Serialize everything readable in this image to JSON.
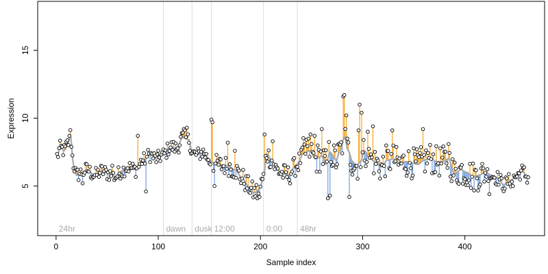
{
  "chart_data": {
    "type": "scatter",
    "title": "",
    "xlabel": "Sample index",
    "ylabel": "Expression",
    "xlim": [
      -18,
      478
    ],
    "ylim": [
      1.35,
      18.6
    ],
    "xticks": [
      0,
      100,
      200,
      300,
      400
    ],
    "yticks": [
      5,
      10,
      15
    ],
    "grid": false,
    "legend": "none",
    "colors": {
      "above_smooth": "#f5a623",
      "below_smooth": "#6f9ee0",
      "smooth_line": "#a9a9a9",
      "marker_edge": "#000000",
      "vline": "#dcdcdc",
      "annotation": "#a9a9a9"
    },
    "annotations": [
      {
        "x": 0,
        "label": "24hr"
      },
      {
        "x": 105,
        "label": "dawn"
      },
      {
        "x": 133,
        "label": "dusk"
      },
      {
        "x": 152,
        "label": "12:00"
      },
      {
        "x": 203,
        "label": "0:00"
      },
      {
        "x": 236,
        "label": "48hr"
      }
    ],
    "vlines": [
      105,
      133,
      152,
      203,
      236
    ],
    "anchors": [
      [
        1,
        7.2
      ],
      [
        4,
        7.8
      ],
      [
        8,
        7.6
      ],
      [
        12,
        8.2
      ],
      [
        14,
        8.8
      ],
      [
        17,
        6.6
      ],
      [
        20,
        5.8
      ],
      [
        25,
        6.0
      ],
      [
        30,
        6.2
      ],
      [
        38,
        5.8
      ],
      [
        45,
        6.1
      ],
      [
        52,
        5.9
      ],
      [
        58,
        5.7
      ],
      [
        64,
        6.1
      ],
      [
        70,
        6.4
      ],
      [
        78,
        6.2
      ],
      [
        85,
        6.9
      ],
      [
        92,
        7.3
      ],
      [
        98,
        7.0
      ],
      [
        105,
        7.3
      ],
      [
        112,
        7.9
      ],
      [
        118,
        7.8
      ],
      [
        124,
        8.6
      ],
      [
        130,
        8.4
      ],
      [
        133,
        7.4
      ],
      [
        138,
        7.3
      ],
      [
        144,
        7.5
      ],
      [
        148,
        7.1
      ],
      [
        152,
        6.8
      ],
      [
        156,
        6.6
      ],
      [
        162,
        6.5
      ],
      [
        168,
        6.5
      ],
      [
        175,
        6.2
      ],
      [
        182,
        5.6
      ],
      [
        188,
        5.0
      ],
      [
        194,
        4.5
      ],
      [
        199,
        4.8
      ],
      [
        203,
        5.6
      ],
      [
        206,
        7.4
      ],
      [
        211,
        6.9
      ],
      [
        216,
        6.2
      ],
      [
        222,
        5.9
      ],
      [
        228,
        5.8
      ],
      [
        232,
        6.3
      ],
      [
        236,
        6.6
      ],
      [
        242,
        7.4
      ],
      [
        248,
        7.6
      ],
      [
        254,
        7.0
      ],
      [
        260,
        7.2
      ],
      [
        264,
        6.6
      ],
      [
        268,
        7.5
      ],
      [
        274,
        6.9
      ],
      [
        278,
        7.6
      ],
      [
        282,
        8.6
      ],
      [
        286,
        7.6
      ],
      [
        290,
        6.8
      ],
      [
        294,
        6.5
      ],
      [
        298,
        6.8
      ],
      [
        302,
        7.6
      ],
      [
        306,
        7.1
      ],
      [
        312,
        6.8
      ],
      [
        318,
        6.4
      ],
      [
        324,
        6.9
      ],
      [
        330,
        7.0
      ],
      [
        336,
        6.6
      ],
      [
        342,
        6.8
      ],
      [
        348,
        6.7
      ],
      [
        354,
        6.6
      ],
      [
        360,
        6.9
      ],
      [
        366,
        7.1
      ],
      [
        372,
        6.8
      ],
      [
        378,
        6.8
      ],
      [
        384,
        7.0
      ],
      [
        390,
        5.9
      ],
      [
        396,
        6.2
      ],
      [
        402,
        6.0
      ],
      [
        408,
        5.7
      ],
      [
        414,
        5.8
      ],
      [
        420,
        6.0
      ],
      [
        426,
        5.8
      ],
      [
        432,
        5.6
      ],
      [
        438,
        5.1
      ],
      [
        444,
        5.4
      ],
      [
        450,
        5.7
      ],
      [
        456,
        6.1
      ],
      [
        462,
        5.6
      ]
    ],
    "peaks": [
      [
        13,
        8.7
      ],
      [
        26,
        5.2
      ],
      [
        55,
        6.5
      ],
      [
        80,
        8.7
      ],
      [
        88,
        4.6
      ],
      [
        125,
        9.2
      ],
      [
        128,
        9.3
      ],
      [
        152,
        9.9
      ],
      [
        153,
        9.7
      ],
      [
        155,
        5.0
      ],
      [
        168,
        8.2
      ],
      [
        175,
        7.6
      ],
      [
        197,
        4.1
      ],
      [
        199,
        4.2
      ],
      [
        204,
        8.8
      ],
      [
        212,
        8.3
      ],
      [
        245,
        8.4
      ],
      [
        249,
        8.8
      ],
      [
        253,
        8.7
      ],
      [
        260,
        9.2
      ],
      [
        266,
        4.1
      ],
      [
        268,
        4.3
      ],
      [
        281,
        11.6
      ],
      [
        282,
        11.7
      ],
      [
        284,
        10.2
      ],
      [
        287,
        4.2
      ],
      [
        296,
        9.1
      ],
      [
        297,
        11.0
      ],
      [
        299,
        10.4
      ],
      [
        305,
        9.0
      ],
      [
        310,
        9.4
      ],
      [
        329,
        9.1
      ],
      [
        359,
        9.2
      ],
      [
        384,
        8.1
      ],
      [
        424,
        4.4
      ],
      [
        447,
        5.0
      ]
    ],
    "n_points": 462
  }
}
